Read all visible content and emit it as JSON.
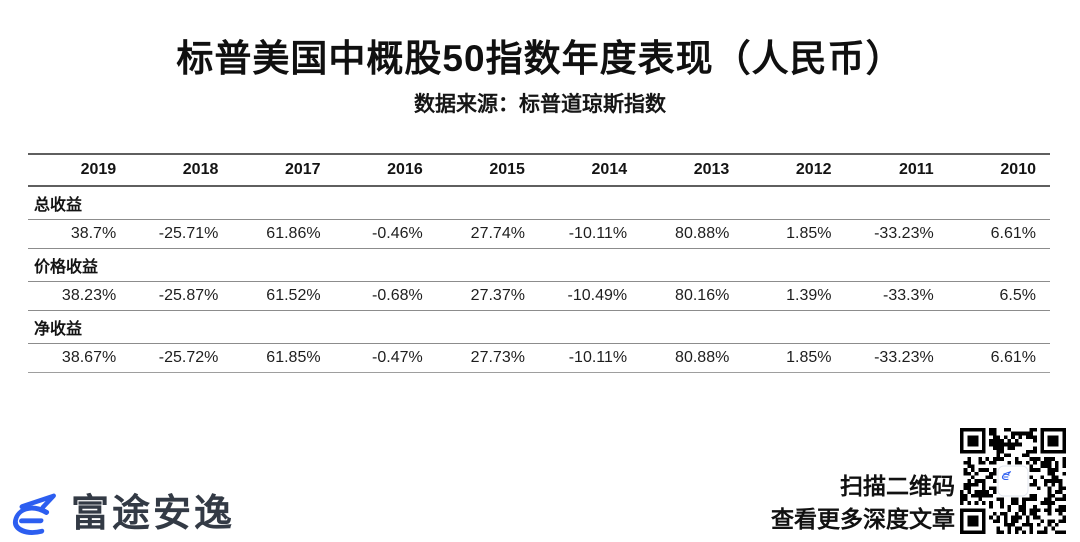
{
  "page": {
    "title": "标普美国中概股50指数年度表现（人民币）",
    "subtitle": "数据来源：标普道琼斯指数"
  },
  "chart_data": {
    "type": "table",
    "title": "标普美国中概股50指数年度表现（人民币）",
    "source_note": "数据来源：标普道琼斯指数",
    "categories": [
      "2019",
      "2018",
      "2017",
      "2016",
      "2015",
      "2014",
      "2013",
      "2012",
      "2011",
      "2010"
    ],
    "series": [
      {
        "name": "总收益",
        "values": [
          "38.7%",
          "-25.71%",
          "61.86%",
          "-0.46%",
          "27.74%",
          "-10.11%",
          "80.88%",
          "1.85%",
          "-33.23%",
          "6.61%"
        ]
      },
      {
        "name": "价格收益",
        "values": [
          "38.23%",
          "-25.87%",
          "61.52%",
          "-0.68%",
          "27.37%",
          "-10.49%",
          "80.16%",
          "1.39%",
          "-33.3%",
          "6.5%"
        ]
      },
      {
        "name": "净收益",
        "values": [
          "38.67%",
          "-25.72%",
          "61.85%",
          "-0.47%",
          "27.73%",
          "-10.11%",
          "80.88%",
          "1.85%",
          "-33.23%",
          "6.61%"
        ]
      }
    ],
    "layout_hints": {
      "row_group_labels_span_full_width": true,
      "values_right_aligned": true,
      "grid": "horizontal-rules-only"
    }
  },
  "footer": {
    "brand_name": "富途安逸",
    "qr_caption_line1": "扫描二维码",
    "qr_caption_line2": "查看更多深度文章",
    "brand_logo_icon": "futu-logo-icon",
    "qr_code_icon": "qr-code"
  },
  "colors": {
    "brand_blue": "#2c5ef0",
    "text_primary": "#1c1c1c",
    "divider_gray": "#8c8c8c",
    "background": "#ffffff"
  }
}
